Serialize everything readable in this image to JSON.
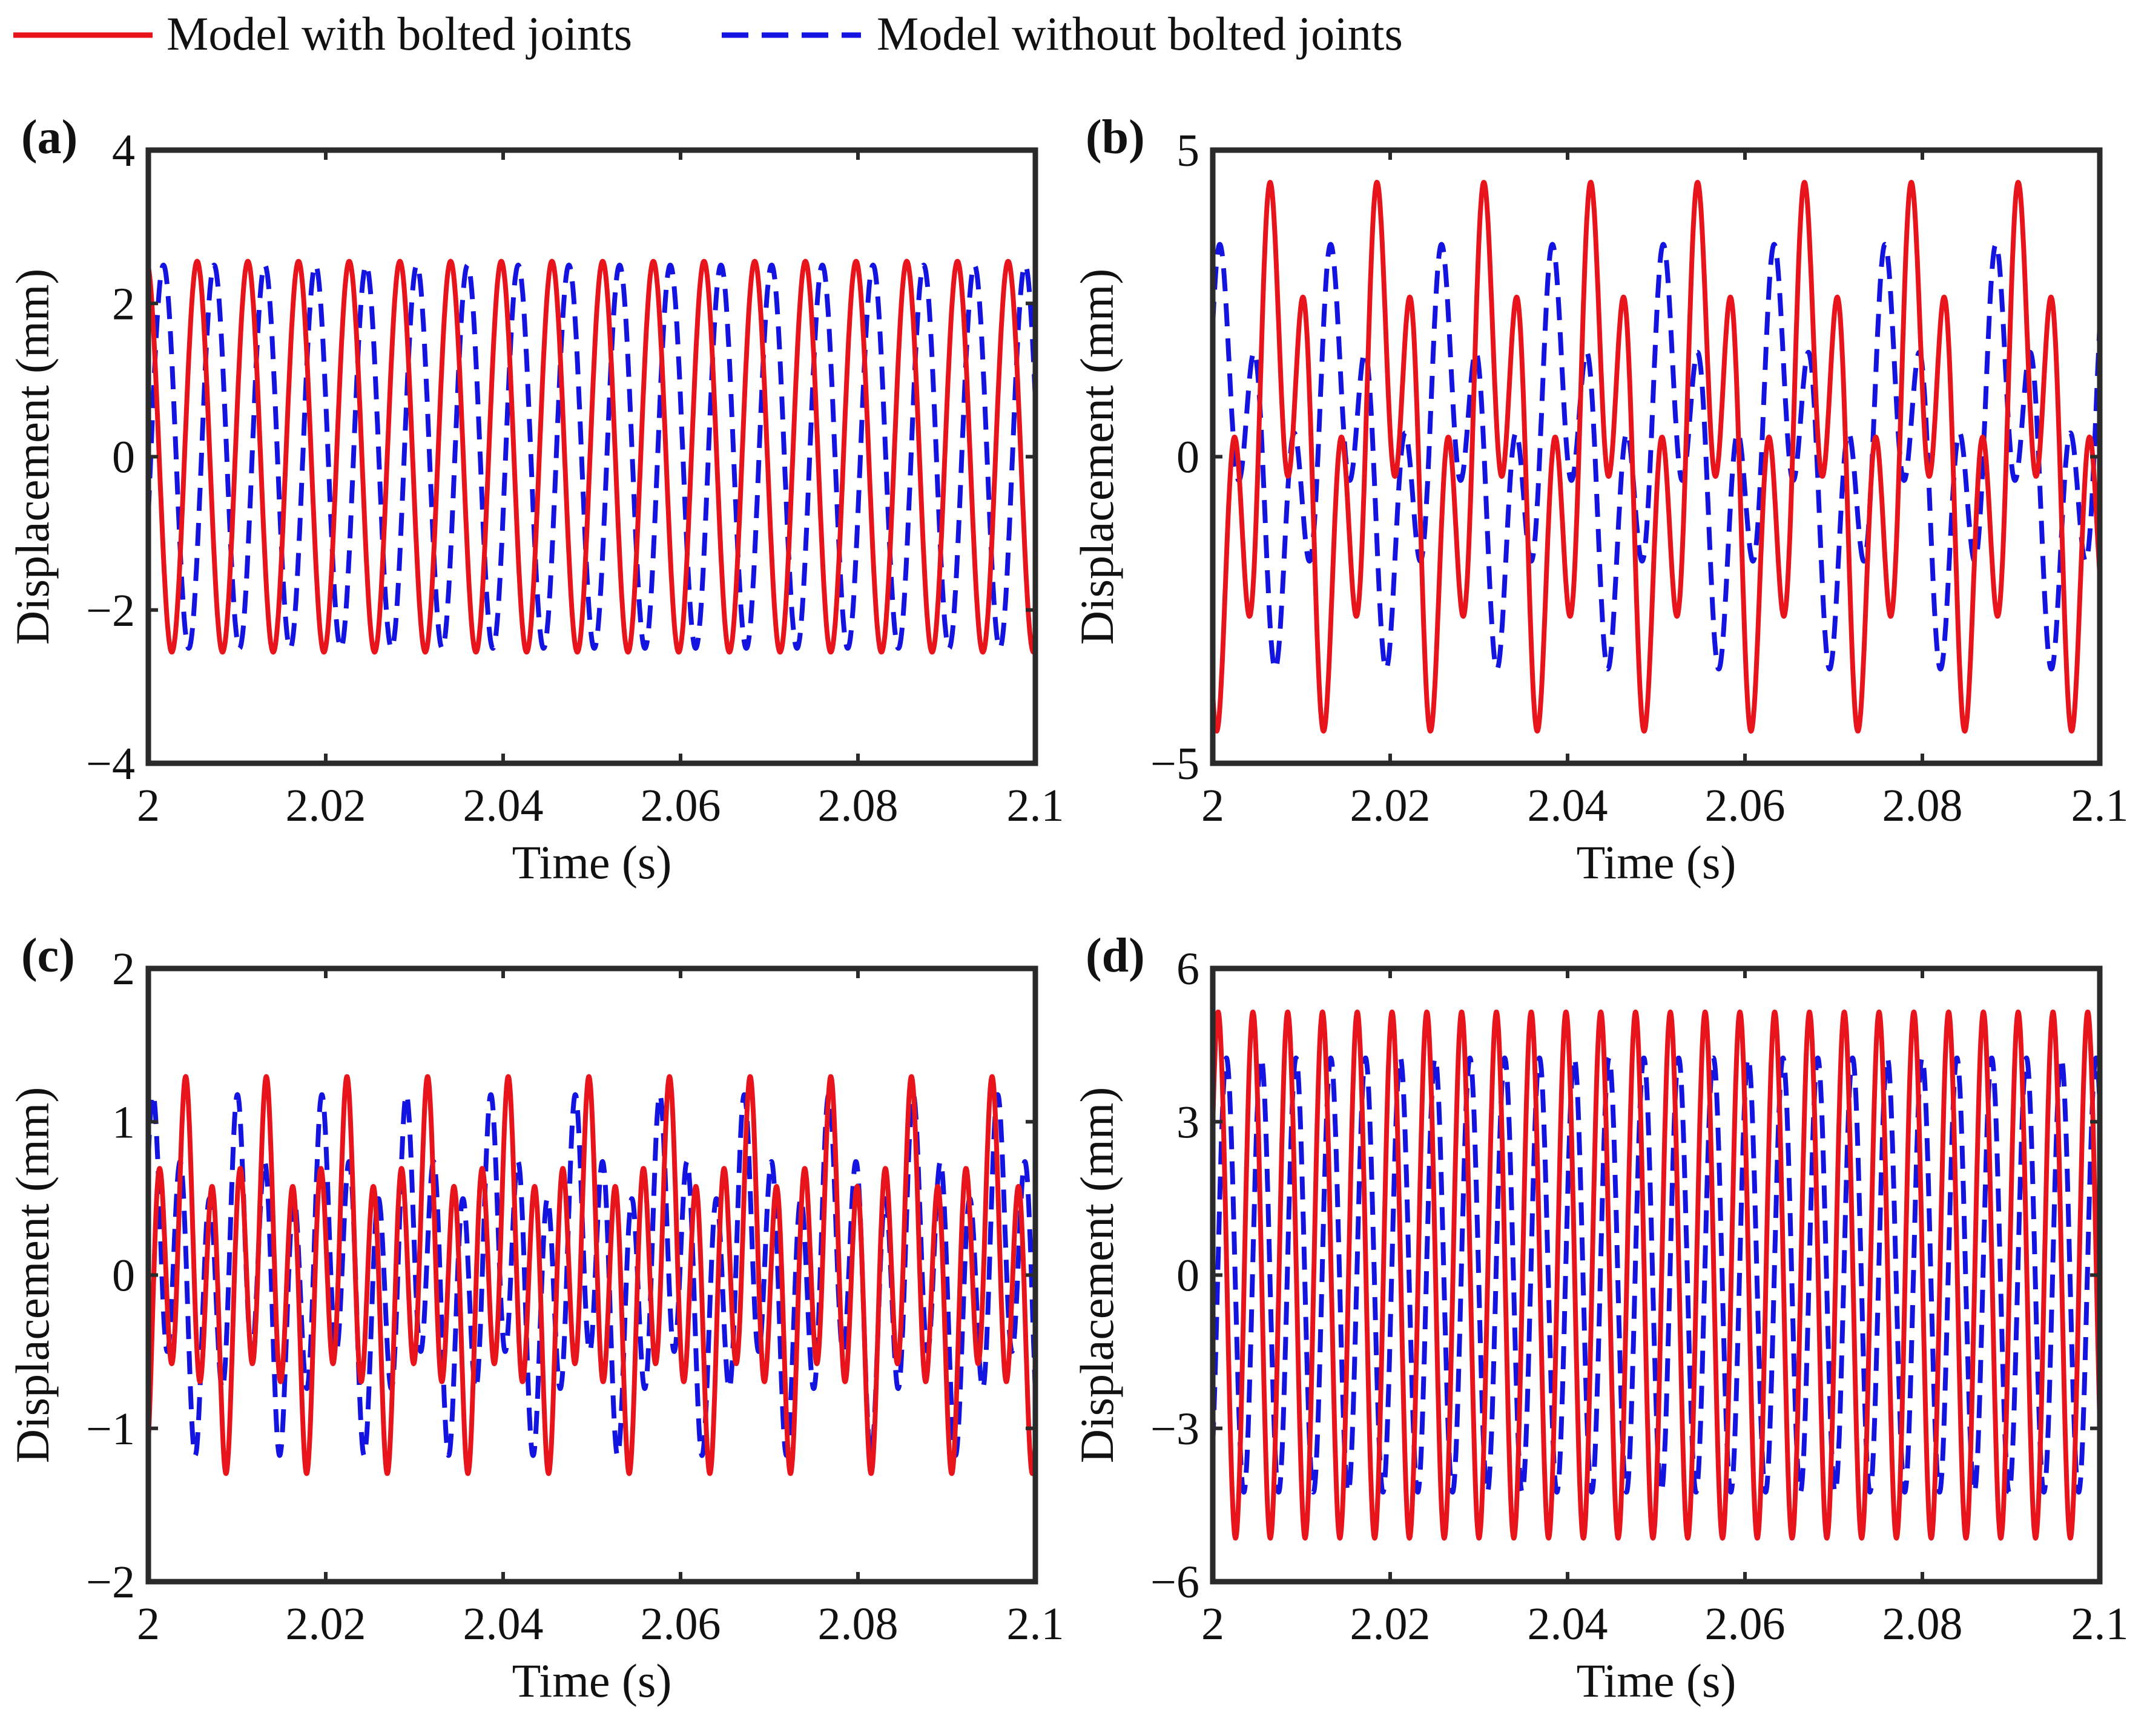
{
  "chart_data": {
    "legend": [
      {
        "name": "Model with bolted joints",
        "color": "#e8141b",
        "style": "solid"
      },
      {
        "name": "Model without bolted joints",
        "color": "#1414e0",
        "style": "dashed"
      }
    ],
    "panels": [
      {
        "label": "(a)",
        "type": "line",
        "xlabel": "Time (s)",
        "ylabel": "Displacement (mm)",
        "xlim": [
          2,
          2.1
        ],
        "ylim": [
          -4,
          4
        ],
        "xticks": [
          "2",
          "2.02",
          "2.04",
          "2.06",
          "2.08",
          "2.1"
        ],
        "yticks": [
          "−4",
          "−2",
          "0",
          "2",
          "4"
        ],
        "series": [
          {
            "name": "Model with bolted joints",
            "components": [
              {
                "amp": 2.55,
                "freq": 175,
                "phase": 1.8
              }
            ]
          },
          {
            "name": "Model without bolted joints",
            "components": [
              {
                "amp": 2.5,
                "freq": 175,
                "phase": -0.3
              }
            ]
          }
        ]
      },
      {
        "label": "(b)",
        "type": "line",
        "xlabel": "Time (s)",
        "ylabel": "Displacement (mm)",
        "xlim": [
          2,
          2.1
        ],
        "ylim": [
          -5,
          5
        ],
        "xticks": [
          "2",
          "2.02",
          "2.04",
          "2.06",
          "2.08",
          "2.1"
        ],
        "yticks": [
          "−5",
          "0",
          "5"
        ],
        "series": [
          {
            "name": "Model with bolted joints",
            "components": [
              {
                "amp": 2.4,
                "freq": 83,
                "phase": -2.3
              },
              {
                "amp": 2.4,
                "freq": 249,
                "phase": -2.1
              }
            ]
          },
          {
            "name": "Model without bolted joints",
            "components": [
              {
                "amp": 1.8,
                "freq": 80,
                "phase": 0.8
              },
              {
                "amp": 1.8,
                "freq": 240,
                "phase": 0.5
              }
            ]
          }
        ]
      },
      {
        "label": "(c)",
        "type": "line",
        "xlabel": "Time (s)",
        "ylabel": "Displacement (mm)",
        "xlim": [
          2,
          2.1
        ],
        "ylim": [
          -2,
          2
        ],
        "xticks": [
          "2",
          "2.02",
          "2.04",
          "2.06",
          "2.08",
          "2.1"
        ],
        "yticks": [
          "−2",
          "−1",
          "0",
          "1",
          "2"
        ],
        "series": [
          {
            "name": "Model with bolted joints",
            "components": [
              {
                "amp": 0.45,
                "freq": 110,
                "phase": -1.2
              },
              {
                "amp": 0.85,
                "freq": 330,
                "phase": -0.9
              }
            ]
          },
          {
            "name": "Model without bolted joints",
            "components": [
              {
                "amp": 0.4,
                "freq": 105,
                "phase": 0.9
              },
              {
                "amp": 0.8,
                "freq": 315,
                "phase": 0.6
              }
            ]
          }
        ]
      },
      {
        "label": "(d)",
        "type": "line",
        "xlabel": "Time (s)",
        "ylabel": "Displacement (mm)",
        "xlim": [
          2,
          2.1
        ],
        "ylim": [
          -6,
          6
        ],
        "xticks": [
          "2",
          "2.02",
          "2.04",
          "2.06",
          "2.08",
          "2.1"
        ],
        "yticks": [
          "−6",
          "−3",
          "0",
          "3",
          "6"
        ],
        "series": [
          {
            "name": "Model with bolted joints",
            "components": [
              {
                "amp": 5.15,
                "freq": 255,
                "phase": 0.6
              }
            ]
          },
          {
            "name": "Model without bolted joints",
            "components": [
              {
                "amp": 4.25,
                "freq": 255,
                "phase": -0.9
              }
            ]
          }
        ]
      }
    ]
  }
}
